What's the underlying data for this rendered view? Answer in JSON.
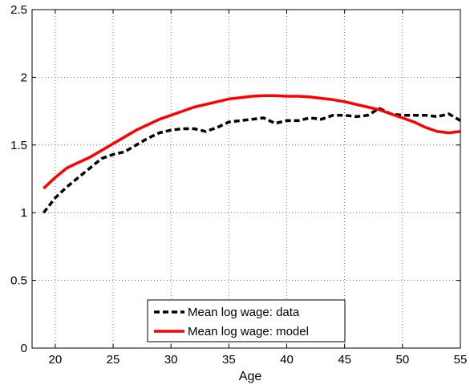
{
  "chart_data": {
    "type": "line",
    "xlabel": "Age",
    "ylabel": "",
    "xlim": [
      18,
      55
    ],
    "ylim": [
      0,
      2.5
    ],
    "xticks": [
      20,
      25,
      30,
      35,
      40,
      45,
      50,
      55
    ],
    "yticks": [
      0,
      0.5,
      1,
      1.5,
      2,
      2.5
    ],
    "xtick_labels": [
      "20",
      "25",
      "30",
      "35",
      "40",
      "45",
      "50",
      "55"
    ],
    "ytick_labels": [
      "0",
      "0.5",
      "1",
      "1.5",
      "2",
      "2.5"
    ],
    "grid": true,
    "legend_position": "bottom-center",
    "series": [
      {
        "name": "Mean log wage: data",
        "style": "dashed",
        "color": "#000000",
        "x": [
          19,
          20,
          21,
          22,
          23,
          24,
          25,
          26,
          27,
          28,
          29,
          30,
          31,
          32,
          33,
          34,
          35,
          36,
          37,
          38,
          39,
          40,
          41,
          42,
          43,
          44,
          45,
          46,
          47,
          48,
          49,
          50,
          51,
          52,
          53,
          54,
          55
        ],
        "y": [
          1.0,
          1.11,
          1.19,
          1.26,
          1.33,
          1.4,
          1.43,
          1.45,
          1.5,
          1.55,
          1.59,
          1.61,
          1.62,
          1.62,
          1.6,
          1.63,
          1.67,
          1.68,
          1.69,
          1.7,
          1.66,
          1.68,
          1.68,
          1.7,
          1.69,
          1.72,
          1.72,
          1.71,
          1.72,
          1.77,
          1.73,
          1.72,
          1.72,
          1.72,
          1.71,
          1.73,
          1.68
        ]
      },
      {
        "name": "Mean log wage: model",
        "style": "solid",
        "color": "#ff0000",
        "x": [
          19,
          20,
          21,
          22,
          23,
          24,
          25,
          26,
          27,
          28,
          29,
          30,
          31,
          32,
          33,
          34,
          35,
          36,
          37,
          38,
          39,
          40,
          41,
          42,
          43,
          44,
          45,
          46,
          47,
          48,
          49,
          50,
          51,
          52,
          53,
          54,
          55
        ],
        "y": [
          1.18,
          1.26,
          1.33,
          1.37,
          1.41,
          1.46,
          1.51,
          1.56,
          1.61,
          1.65,
          1.69,
          1.72,
          1.75,
          1.78,
          1.8,
          1.82,
          1.84,
          1.85,
          1.86,
          1.865,
          1.865,
          1.86,
          1.86,
          1.855,
          1.845,
          1.835,
          1.82,
          1.8,
          1.78,
          1.76,
          1.73,
          1.7,
          1.67,
          1.63,
          1.6,
          1.59,
          1.6
        ]
      }
    ]
  }
}
